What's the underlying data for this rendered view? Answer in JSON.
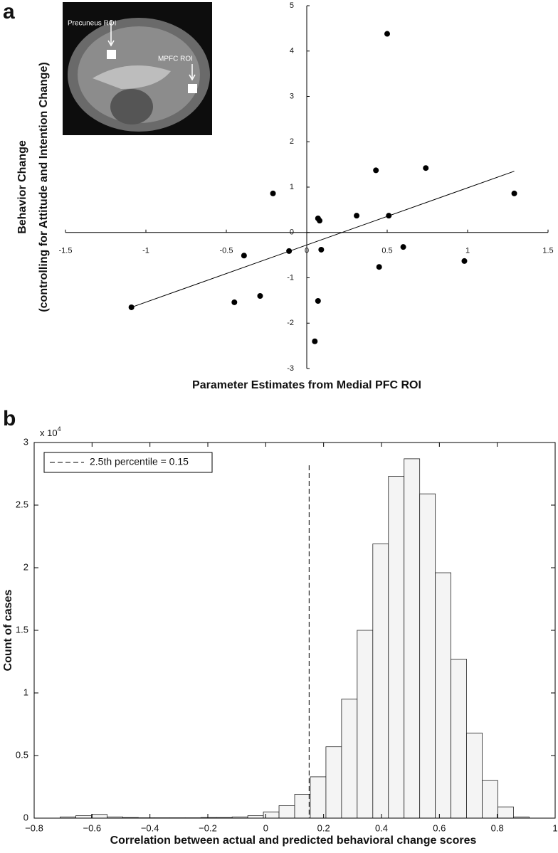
{
  "chart_data": [
    {
      "type": "scatter",
      "panel": "a",
      "xlabel": "Parameter Estimates from Medial PFC ROI",
      "ylabel": [
        "Behavior Change",
        "(controlling for Attitude and Intention Change)"
      ],
      "inset_labels": [
        "Precuneus ROI",
        "MPFC ROI"
      ],
      "x": [
        -1.09,
        -0.45,
        -0.29,
        -0.39,
        -0.21,
        -0.11,
        0.07,
        0.08,
        0.09,
        0.07,
        0.05,
        0.31,
        0.43,
        0.45,
        0.5,
        0.51,
        0.6,
        0.74,
        0.98,
        1.29
      ],
      "values": [
        -1.65,
        -1.54,
        -1.4,
        -0.51,
        0.86,
        -0.41,
        0.31,
        0.26,
        -0.38,
        -1.51,
        -2.4,
        0.37,
        1.37,
        -0.76,
        4.38,
        0.37,
        -0.32,
        1.42,
        -0.63,
        0.86
      ],
      "color": "#000000",
      "fit_line": {
        "x": [
          -1.09,
          1.29
        ],
        "y": [
          -1.65,
          1.35
        ]
      },
      "xlim": [
        -1.5,
        1.5
      ],
      "xticks": [
        -1.5,
        -1,
        -0.5,
        0,
        0.5,
        1,
        1.5
      ],
      "ylim": [
        -3,
        5
      ],
      "yticks": [
        -3,
        -2,
        -1,
        0,
        1,
        2,
        3,
        4,
        5
      ]
    },
    {
      "type": "histogram",
      "panel": "b",
      "xlabel": "Correlation between actual and predicted behavioral change scores",
      "ylabel": "Count of cases",
      "y_scale_label": {
        "base": "x 10",
        "exponent": "4"
      },
      "bins": [
        -0.71,
        -0.656,
        -0.602,
        -0.548,
        -0.494,
        -0.44,
        -0.386,
        -0.332,
        -0.278,
        -0.224,
        -0.17,
        -0.116,
        -0.062,
        -0.008,
        0.046,
        0.1,
        0.154,
        0.208,
        0.262,
        0.316,
        0.37,
        0.424,
        0.478,
        0.532,
        0.586,
        0.64,
        0.694,
        0.748,
        0.802,
        0.856,
        0.91
      ],
      "values": [
        0.01,
        0.02,
        0.03,
        0.01,
        0.005,
        0.003,
        0.003,
        0.003,
        0.003,
        0.005,
        0.005,
        0.01,
        0.02,
        0.05,
        0.1,
        0.19,
        0.33,
        0.57,
        0.95,
        1.5,
        2.19,
        2.73,
        2.87,
        2.59,
        1.96,
        1.27,
        0.68,
        0.3,
        0.09,
        0.01
      ],
      "color": "#f4f4f4",
      "reference_line": {
        "value": 0.15,
        "label": "2.5th percentile = 0.15"
      },
      "legend": "upper left",
      "xlim": [
        -0.8,
        1
      ],
      "xticks": [
        {
          "value": -0.8,
          "label": "−0.8"
        },
        {
          "value": -0.6,
          "label": "−0.6"
        },
        {
          "value": -0.4,
          "label": "−0.4"
        },
        {
          "value": -0.2,
          "label": "−0.2"
        },
        0,
        0.2,
        0.4,
        0.6,
        0.8,
        1
      ],
      "ylim": [
        0,
        3
      ],
      "yticks": [
        0,
        0.5,
        1,
        1.5,
        2,
        2.5,
        3
      ]
    }
  ]
}
